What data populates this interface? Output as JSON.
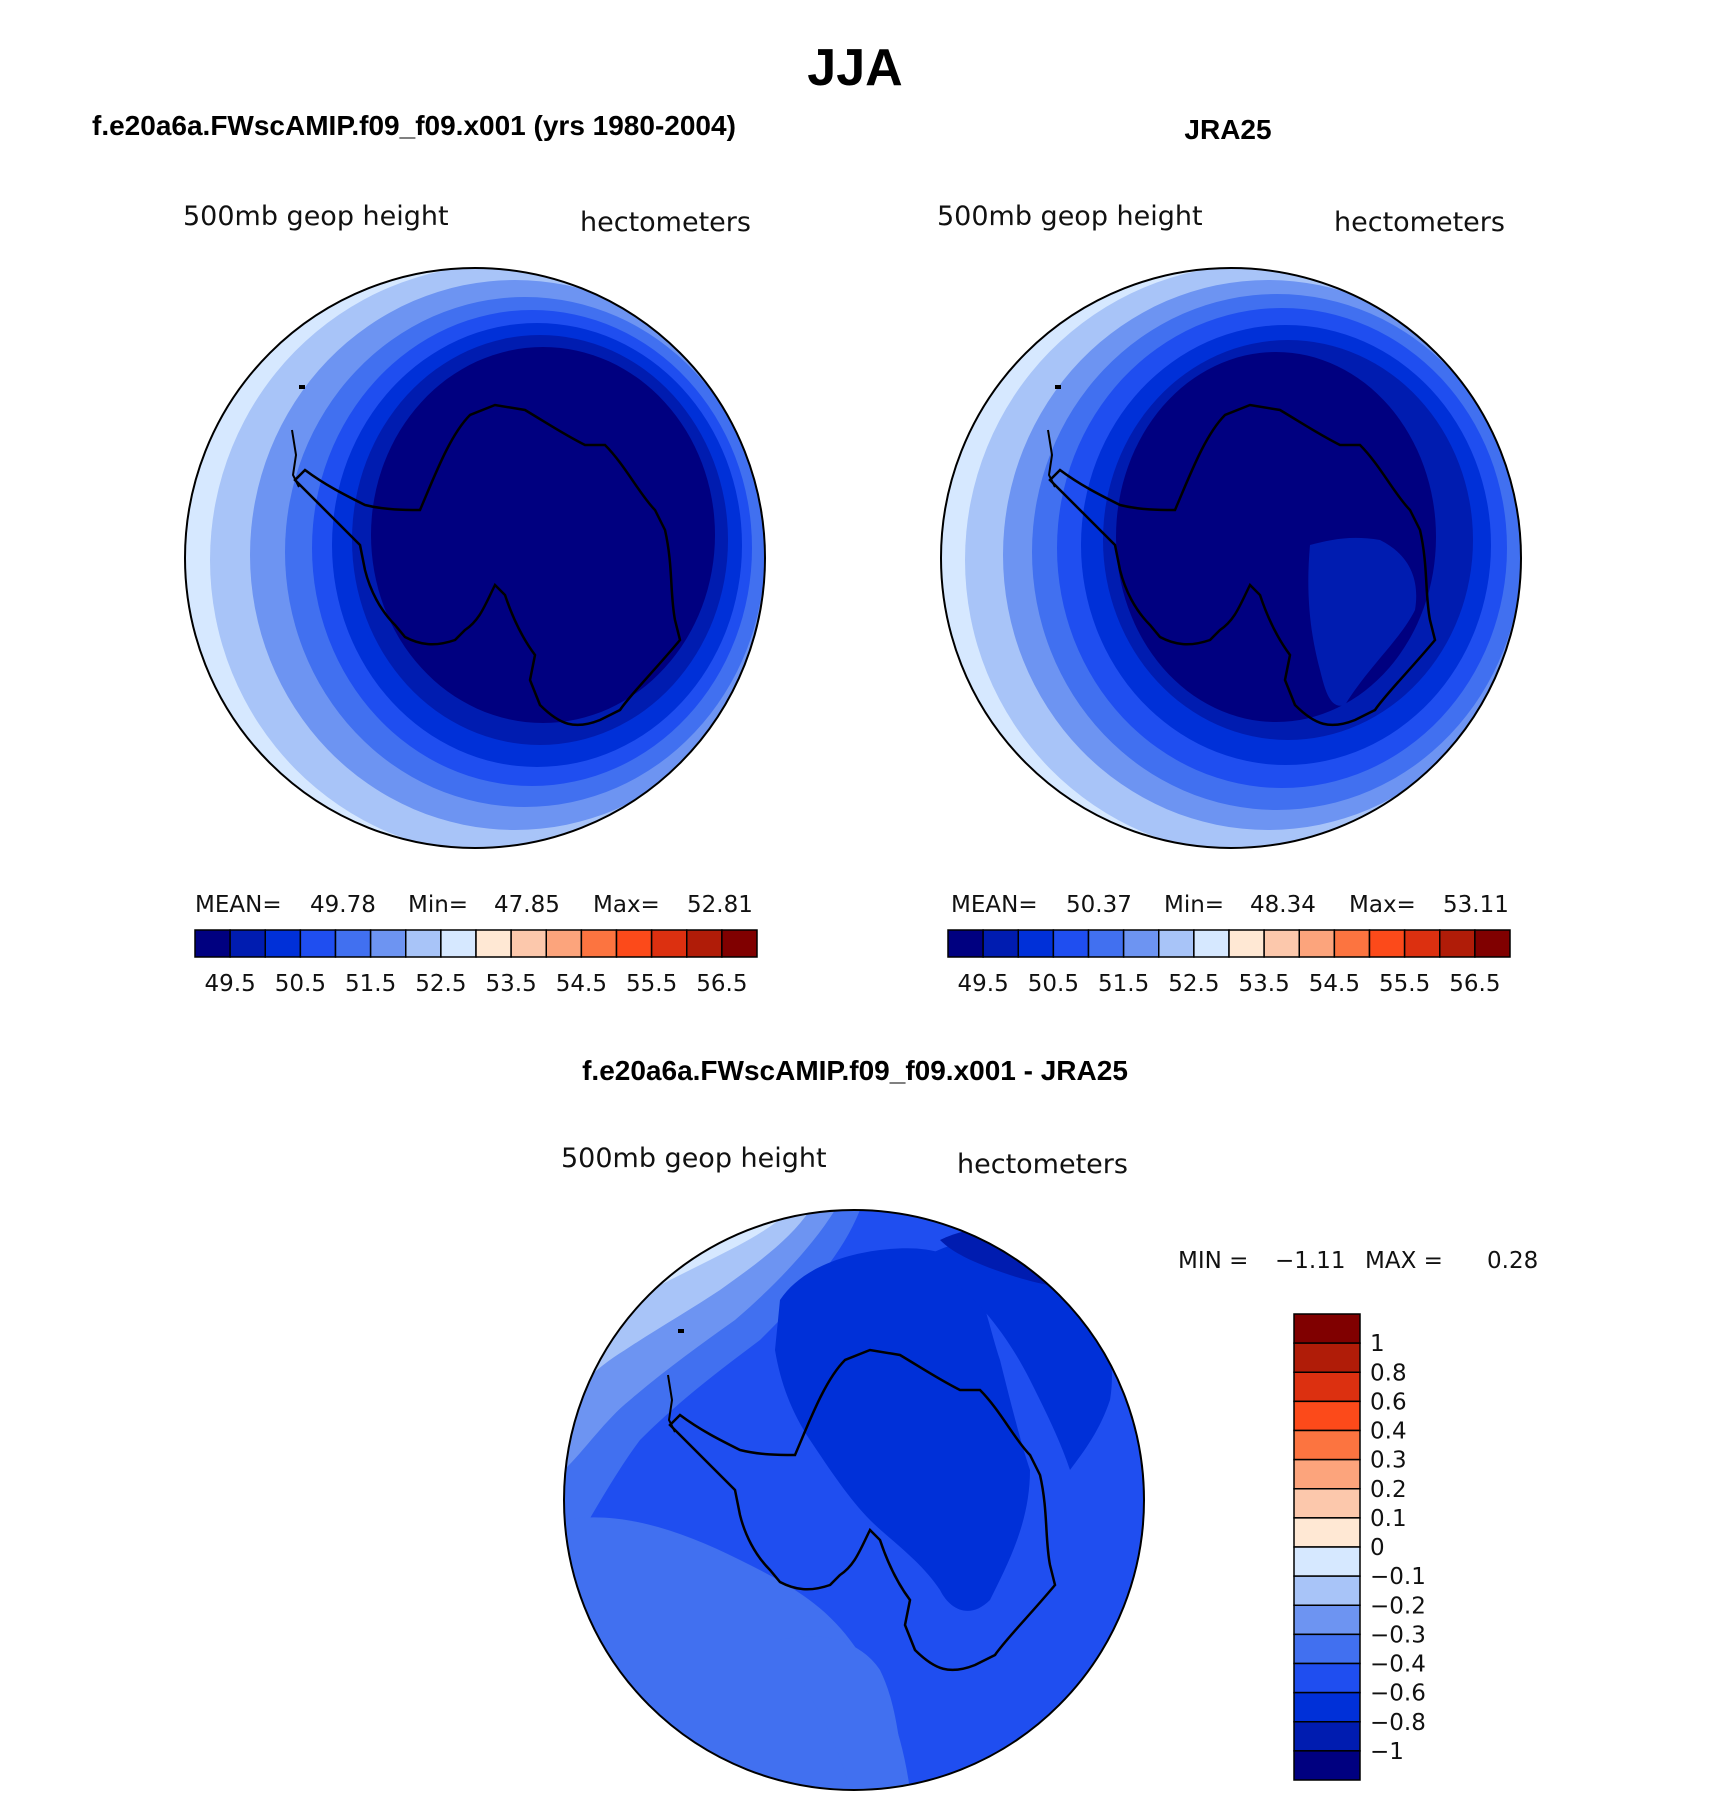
{
  "figure": {
    "title": "JJA",
    "colors": {
      "scale": [
        "#000080",
        "#001cb0",
        "#0030d8",
        "#1f4ef0",
        "#4170f0",
        "#6d94f2",
        "#a8c4f8",
        "#d6e8ff",
        "#ffe8d4",
        "#fcc8ac",
        "#fca47c",
        "#fc7440",
        "#fc4a1a",
        "#dc3010",
        "#b01c08",
        "#800000"
      ]
    }
  },
  "chart_data": [
    {
      "type": "heatmap",
      "panel_title": "f.e20a6a.FWscAMIP.f09_f09.x001 (yrs 1980-2004)",
      "variable": "500mb geop height",
      "units": "hectometers",
      "stats": {
        "mean_label": "MEAN=",
        "mean": "49.78",
        "min_label": "Min=",
        "min": "47.85",
        "max_label": "Max=",
        "max": "52.81"
      },
      "colorbar_levels": [
        "49.5",
        "50.5",
        "51.5",
        "52.5",
        "53.5",
        "54.5",
        "55.5",
        "56.5"
      ],
      "colorbar_boundaries": [
        49.5,
        50,
        50.5,
        51,
        51.5,
        52,
        52.5,
        53,
        53.5,
        54,
        54.5,
        55,
        55.5,
        56,
        56.5
      ],
      "projection": "south polar stereographic"
    },
    {
      "type": "heatmap",
      "panel_title": "JRA25",
      "variable": "500mb geop height",
      "units": "hectometers",
      "stats": {
        "mean_label": "MEAN=",
        "mean": "50.37",
        "min_label": "Min=",
        "min": "48.34",
        "max_label": "Max=",
        "max": "53.11"
      },
      "colorbar_levels": [
        "49.5",
        "50.5",
        "51.5",
        "52.5",
        "53.5",
        "54.5",
        "55.5",
        "56.5"
      ],
      "colorbar_boundaries": [
        49.5,
        50,
        50.5,
        51,
        51.5,
        52,
        52.5,
        53,
        53.5,
        54,
        54.5,
        55,
        55.5,
        56,
        56.5
      ],
      "projection": "south polar stereographic"
    },
    {
      "type": "heatmap",
      "panel_title": "f.e20a6a.FWscAMIP.f09_f09.x001 - JRA25",
      "variable": "500mb geop height",
      "units": "hectometers",
      "stats": {
        "min_label": "MIN =",
        "min": "−1.11",
        "max_label": "MAX =",
        "max": "0.28"
      },
      "colorbar_levels": [
        "1",
        "0.8",
        "0.6",
        "0.4",
        "0.3",
        "0.2",
        "0.1",
        "0",
        "−0.1",
        "−0.2",
        "−0.3",
        "−0.4",
        "−0.6",
        "−0.8",
        "−1"
      ],
      "colorbar_colors": [
        "#800000",
        "#b01c08",
        "#dc3010",
        "#fc4a1a",
        "#fc7440",
        "#fca47c",
        "#fcc8ac",
        "#ffe8d4",
        "#d6e8ff",
        "#a8c4f8",
        "#6d94f2",
        "#4170f0",
        "#1f4ef0",
        "#0030d8",
        "#001cb0",
        "#000080"
      ],
      "projection": "south polar stereographic"
    }
  ]
}
